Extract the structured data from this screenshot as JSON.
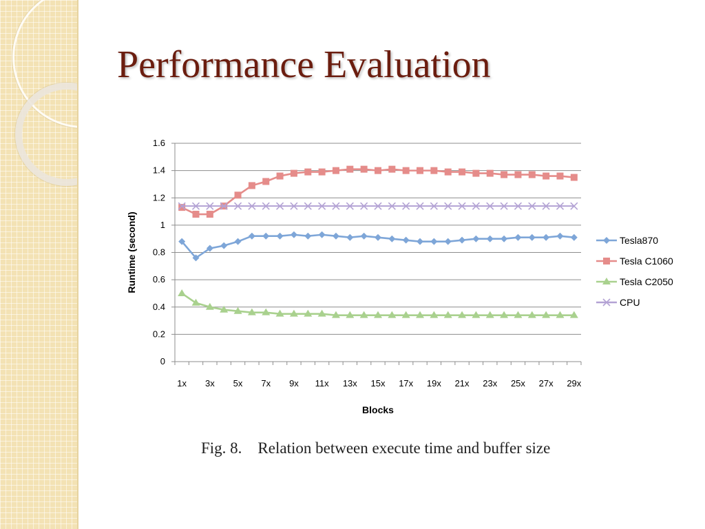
{
  "slide": {
    "title": "Performance Evaluation",
    "caption": "Fig. 8.    Relation between execute time and buffer size"
  },
  "chart_data": {
    "type": "line",
    "xlabel": "Blocks",
    "ylabel": "Runtime (second)",
    "ylim": [
      0,
      1.6
    ],
    "yticks": [
      "0",
      "0.2",
      "0.4",
      "0.6",
      "0.8",
      "1",
      "1.2",
      "1.4",
      "1.6"
    ],
    "grid": "horizontal",
    "legend": "right",
    "categories": [
      "1x",
      "2x",
      "3x",
      "4x",
      "5x",
      "6x",
      "7x",
      "8x",
      "9x",
      "10x",
      "11x",
      "12x",
      "13x",
      "14x",
      "15x",
      "16x",
      "17x",
      "18x",
      "19x",
      "20x",
      "21x",
      "22x",
      "23x",
      "24x",
      "25x",
      "26x",
      "27x",
      "28x",
      "29x"
    ],
    "xtick_labels": [
      "1x",
      "3x",
      "5x",
      "7x",
      "9x",
      "11x",
      "13x",
      "15x",
      "17x",
      "19x",
      "21x",
      "23x",
      "25x",
      "27x",
      "29x"
    ],
    "series": [
      {
        "name": "Tesla870",
        "color": "#7ea6d8",
        "marker": "diamond",
        "values": [
          0.88,
          0.76,
          0.83,
          0.85,
          0.88,
          0.92,
          0.92,
          0.92,
          0.93,
          0.92,
          0.93,
          0.92,
          0.91,
          0.92,
          0.91,
          0.9,
          0.89,
          0.88,
          0.88,
          0.88,
          0.89,
          0.9,
          0.9,
          0.9,
          0.91,
          0.91,
          0.91,
          0.92,
          0.91
        ]
      },
      {
        "name": "Tesla C1060",
        "color": "#e58c8a",
        "marker": "square",
        "values": [
          1.13,
          1.08,
          1.08,
          1.14,
          1.22,
          1.29,
          1.32,
          1.36,
          1.38,
          1.39,
          1.39,
          1.4,
          1.41,
          1.41,
          1.4,
          1.41,
          1.4,
          1.4,
          1.4,
          1.39,
          1.39,
          1.38,
          1.38,
          1.37,
          1.37,
          1.37,
          1.36,
          1.36,
          1.35
        ]
      },
      {
        "name": "Tesla C2050",
        "color": "#a9d18e",
        "marker": "triangle",
        "values": [
          0.5,
          0.43,
          0.4,
          0.38,
          0.37,
          0.36,
          0.36,
          0.35,
          0.35,
          0.35,
          0.35,
          0.34,
          0.34,
          0.34,
          0.34,
          0.34,
          0.34,
          0.34,
          0.34,
          0.34,
          0.34,
          0.34,
          0.34,
          0.34,
          0.34,
          0.34,
          0.34,
          0.34,
          0.34
        ]
      },
      {
        "name": "CPU",
        "color": "#b3a2d4",
        "marker": "x",
        "values": [
          1.14,
          1.14,
          1.14,
          1.14,
          1.14,
          1.14,
          1.14,
          1.14,
          1.14,
          1.14,
          1.14,
          1.14,
          1.14,
          1.14,
          1.14,
          1.14,
          1.14,
          1.14,
          1.14,
          1.14,
          1.14,
          1.14,
          1.14,
          1.14,
          1.14,
          1.14,
          1.14,
          1.14,
          1.14
        ]
      }
    ]
  }
}
